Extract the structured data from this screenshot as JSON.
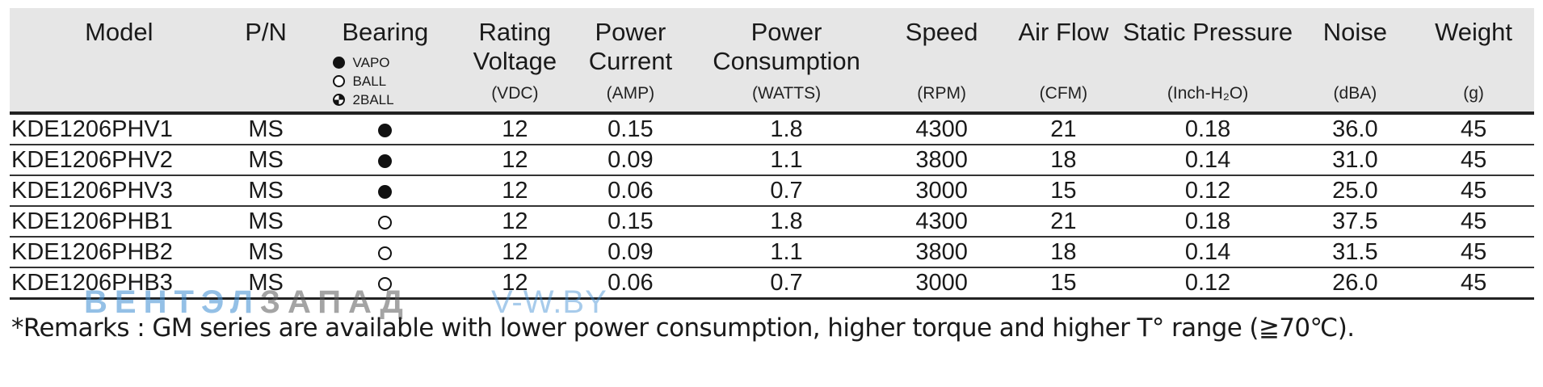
{
  "columns": [
    {
      "key": "model",
      "title": "Model",
      "unit": ""
    },
    {
      "key": "pn",
      "title": "P/N",
      "unit": ""
    },
    {
      "key": "bearing",
      "title": "Bearing",
      "unit": ""
    },
    {
      "key": "voltage",
      "title": "Rating Voltage",
      "unit": "(VDC)"
    },
    {
      "key": "current",
      "title": "Power Current",
      "unit": "(AMP)"
    },
    {
      "key": "power",
      "title": "Power Consumption",
      "unit": "(WATTS)"
    },
    {
      "key": "speed",
      "title": "Speed",
      "unit": "(RPM)"
    },
    {
      "key": "airflow",
      "title": "Air Flow",
      "unit": "(CFM)"
    },
    {
      "key": "pressure",
      "title": "Static Pressure",
      "unit": "(Inch-H₂O)"
    },
    {
      "key": "noise",
      "title": "Noise",
      "unit": "(dBA)"
    },
    {
      "key": "weight",
      "title": "Weight",
      "unit": "(g)"
    }
  ],
  "bearing_legend": [
    {
      "symbol": "vapo",
      "label": "VAPO"
    },
    {
      "symbol": "ball",
      "label": "BALL"
    },
    {
      "symbol": "twoball",
      "label": "2BALL"
    }
  ],
  "rows": [
    {
      "model": "KDE1206PHV1",
      "pn": "MS",
      "bearing": "vapo",
      "voltage": "12",
      "current": "0.15",
      "power": "1.8",
      "speed": "4300",
      "airflow": "21",
      "pressure": "0.18",
      "noise": "36.0",
      "weight": "45"
    },
    {
      "model": "KDE1206PHV2",
      "pn": "MS",
      "bearing": "vapo",
      "voltage": "12",
      "current": "0.09",
      "power": "1.1",
      "speed": "3800",
      "airflow": "18",
      "pressure": "0.14",
      "noise": "31.0",
      "weight": "45"
    },
    {
      "model": "KDE1206PHV3",
      "pn": "MS",
      "bearing": "vapo",
      "voltage": "12",
      "current": "0.06",
      "power": "0.7",
      "speed": "3000",
      "airflow": "15",
      "pressure": "0.12",
      "noise": "25.0",
      "weight": "45"
    },
    {
      "model": "KDE1206PHB1",
      "pn": "MS",
      "bearing": "ball",
      "voltage": "12",
      "current": "0.15",
      "power": "1.8",
      "speed": "4300",
      "airflow": "21",
      "pressure": "0.18",
      "noise": "37.5",
      "weight": "45"
    },
    {
      "model": "KDE1206PHB2",
      "pn": "MS",
      "bearing": "ball",
      "voltage": "12",
      "current": "0.09",
      "power": "1.1",
      "speed": "3800",
      "airflow": "18",
      "pressure": "0.14",
      "noise": "31.5",
      "weight": "45"
    },
    {
      "model": "KDE1206PHB3",
      "pn": "MS",
      "bearing": "ball",
      "voltage": "12",
      "current": "0.06",
      "power": "0.7",
      "speed": "3000",
      "airflow": "15",
      "pressure": "0.12",
      "noise": "26.0",
      "weight": "45"
    }
  ],
  "remarks": "*Remarks : GM series are available with lower power consumption, higher torque and higher T° range (≧70℃).",
  "watermark": {
    "part1": "ВЕНТЭЛ",
    "part2": "ЗАПАД",
    "url": "V-W.BY"
  },
  "colors": {
    "header_bg": "#e6e6e6",
    "rule": "#222222",
    "watermark_blue": "#3c8cd2"
  }
}
